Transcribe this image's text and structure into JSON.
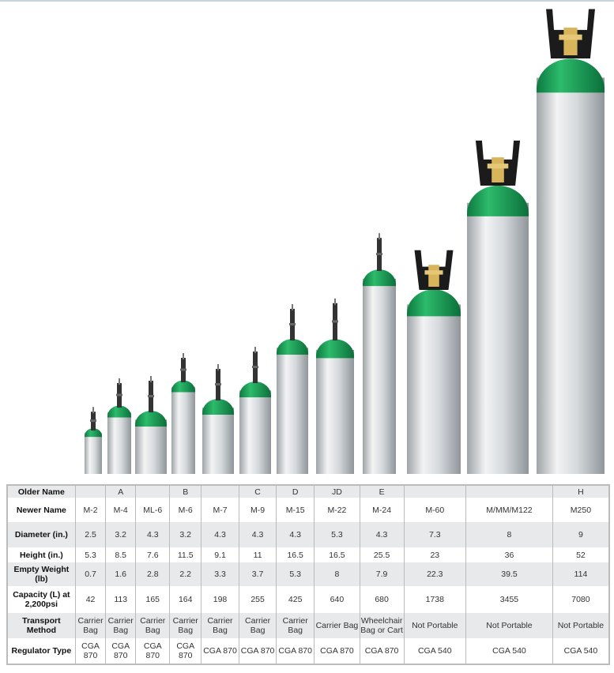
{
  "colors": {
    "cap_green": "#17a35a",
    "body_silver": "#d8dcdf",
    "yoke_black": "#1b1b1b",
    "valve_brass": "#d8b45a"
  },
  "cylinders": [
    "M-2",
    "M-4",
    "ML-6",
    "M-6",
    "M-7",
    "M-9",
    "M-15",
    "M-22",
    "M-24",
    "M-60",
    "M/MM/M122",
    "M250"
  ],
  "table": {
    "rows": [
      {
        "label": "Older Name",
        "values": [
          "",
          "A",
          "",
          "B",
          "",
          "C",
          "D",
          "JD",
          "E",
          "",
          "",
          "H"
        ]
      },
      {
        "label": "Newer Name",
        "values": [
          "M-2",
          "M-4",
          "ML-6",
          "M-6",
          "M-7",
          "M-9",
          "M-15",
          "M-22",
          "M-24",
          "M-60",
          "M/MM/M122",
          "M250"
        ]
      },
      {
        "label": "Diameter (in.)",
        "values": [
          "2.5",
          "3.2",
          "4.3",
          "3.2",
          "4.3",
          "4.3",
          "4.3",
          "5.3",
          "4.3",
          "7.3",
          "8",
          "9"
        ]
      },
      {
        "label": "Height (in.)",
        "values": [
          "5.3",
          "8.5",
          "7.6",
          "11.5",
          "9.1",
          "11",
          "16.5",
          "16.5",
          "25.5",
          "23",
          "36",
          "52"
        ]
      },
      {
        "label": "Empty Weight (lb)",
        "values": [
          "0.7",
          "1.6",
          "2.8",
          "2.2",
          "3.3",
          "3.7",
          "5.3",
          "8",
          "7.9",
          "22.3",
          "39.5",
          "114"
        ]
      },
      {
        "label": "Capacity (L) at 2,200psi",
        "values": [
          "42",
          "113",
          "165",
          "164",
          "198",
          "255",
          "425",
          "640",
          "680",
          "1738",
          "3455",
          "7080"
        ]
      },
      {
        "label": "Transport Method",
        "values": [
          "Carrier Bag",
          "Carrier Bag",
          "Carrier Bag",
          "Carrier Bag",
          "Carrier Bag",
          "Carrier Bag",
          "Carrier Bag",
          "Carrier Bag",
          "Wheelchair Bag or Cart",
          "Not Portable",
          "Not Portable",
          "Not Portable"
        ]
      },
      {
        "label": "Regulator Type",
        "values": [
          "CGA 870",
          "CGA 870",
          "CGA 870",
          "CGA 870",
          "CGA 870",
          "CGA 870",
          "CGA 870",
          "CGA 870",
          "CGA 870",
          "CGA 540",
          "CGA 540",
          "CGA 540"
        ]
      }
    ]
  }
}
